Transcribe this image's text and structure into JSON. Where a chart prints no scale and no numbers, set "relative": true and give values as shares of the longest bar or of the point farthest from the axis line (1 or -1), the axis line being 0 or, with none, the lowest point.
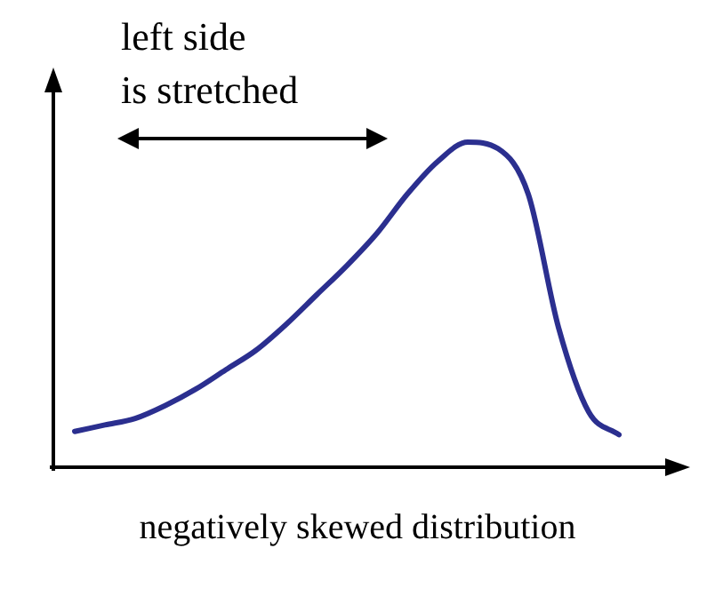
{
  "chart_data": {
    "type": "line",
    "relative": true,
    "categories": [
      null,
      null,
      null,
      null,
      null,
      null,
      null,
      null,
      null,
      null,
      null,
      null,
      null,
      null,
      null,
      null,
      null,
      null,
      null
    ],
    "series": [
      {
        "color": "#2b2f8f",
        "values": [
          0.11,
          0.13,
          0.15,
          0.19,
          0.24,
          0.3,
          0.36,
          0.44,
          0.53,
          0.62,
          0.72,
          0.84,
          0.94,
          1,
          0.98,
          0.84,
          0.43,
          0.17,
          0.1
        ]
      }
    ],
    "xlabel": "negatively skewed distribution",
    "annotations": [
      "left side\nis stretched"
    ],
    "marker": "none",
    "legend": false,
    "tick_labels": false
  }
}
